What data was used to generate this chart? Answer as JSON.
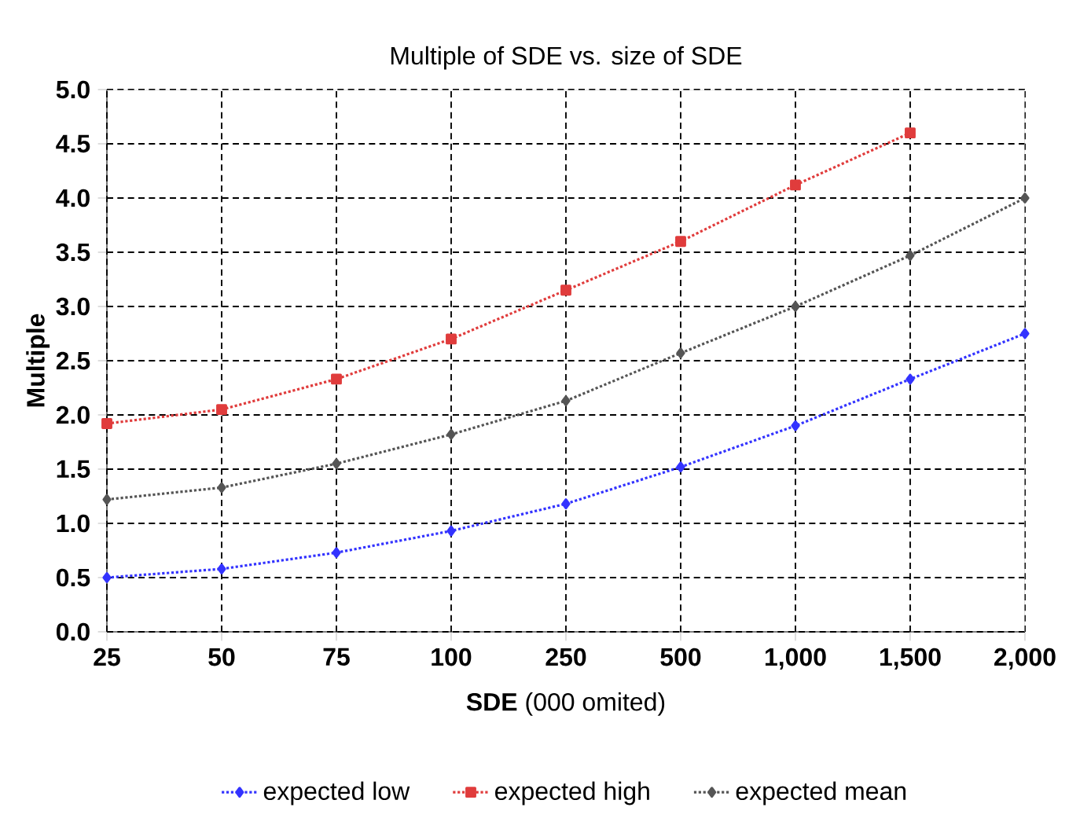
{
  "chart_data": {
    "type": "line",
    "title": "Multiple of SDE vs. size of SDE",
    "xlabel": "**SDE** (000 omited)",
    "ylabel": "Multiple",
    "categories": [
      "25",
      "50",
      "75",
      "100",
      "250",
      "500",
      "1,000",
      "1,500",
      "2,000"
    ],
    "series": [
      {
        "name": "expected low",
        "color": "#3333ff",
        "marker": "diamond",
        "values": [
          0.5,
          0.58,
          0.73,
          0.93,
          1.18,
          1.52,
          1.9,
          2.33,
          2.75
        ]
      },
      {
        "name": "expected high",
        "color": "#e03c3c",
        "marker": "square",
        "values": [
          1.92,
          2.05,
          2.33,
          2.7,
          3.15,
          3.6,
          4.12,
          4.6,
          null
        ]
      },
      {
        "name": "expected mean",
        "color": "#555555",
        "marker": "diamond",
        "values": [
          1.22,
          1.33,
          1.55,
          1.82,
          2.13,
          2.57,
          3.0,
          3.47,
          4.0
        ]
      }
    ],
    "ylim": [
      0,
      5
    ],
    "yticks": [
      {
        "value": 0,
        "label": "0.0"
      },
      {
        "value": 0.5,
        "label": "0.5"
      },
      {
        "value": 1,
        "label": "1.0"
      },
      {
        "value": 1.5,
        "label": "1.5"
      },
      {
        "value": 2,
        "label": "2.0"
      },
      {
        "value": 2.5,
        "label": "2.5"
      },
      {
        "value": 3,
        "label": "3.0"
      },
      {
        "value": 3.5,
        "label": "3.5"
      },
      {
        "value": 4,
        "label": "4.0"
      },
      {
        "value": 4.5,
        "label": "4.5"
      },
      {
        "value": 5,
        "label": "5.0"
      }
    ],
    "grid": true,
    "legend": "bottom",
    "line_style": "dotted"
  }
}
